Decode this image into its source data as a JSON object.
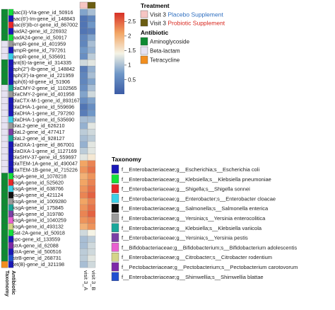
{
  "chart_data": {
    "type": "heatmap",
    "columns": [
      "visit 3_A",
      "visit 3_B"
    ],
    "annotation_tracks": [
      "Taxonomy",
      "Antibiotic"
    ],
    "column_annotation_title": "Treatment",
    "rows": [
      {
        "label": "aac(3)-VIa-gene_id_50916",
        "values": [
          0.8,
          1.0
        ],
        "taxonomy": 1,
        "antibiotic": 0
      },
      {
        "label": "aac(6')-Im-gene_id_148843",
        "values": [
          0.3,
          0.5
        ],
        "taxonomy": 0,
        "antibiotic": 0
      },
      {
        "label": "aac(6')Ib-cr-gene_id_867002",
        "values": [
          0.3,
          0.7
        ],
        "taxonomy": 2,
        "antibiotic": 0
      },
      {
        "label": "aadA2-gene_id_226932",
        "values": [
          0.3,
          0.4
        ],
        "taxonomy": 0,
        "antibiotic": 0
      },
      {
        "label": "aadA24-gene_id_50917",
        "values": [
          0.5,
          0.8
        ],
        "taxonomy": 1,
        "antibiotic": 0
      },
      {
        "label": "ampR-gene_id_401959",
        "values": [
          0.5,
          1.0
        ],
        "taxonomy": 5,
        "antibiotic": 1
      },
      {
        "label": "ampR-gene_id_797261",
        "values": [
          0.7,
          0.9
        ],
        "taxonomy": 0,
        "antibiotic": 1
      },
      {
        "label": "ampR-gene_id_535691",
        "values": [
          0.6,
          1.1
        ],
        "taxonomy": 3,
        "antibiotic": 1
      },
      {
        "label": "ant(6)-Ia-gene_id_314335",
        "values": [
          1.2,
          1.3
        ],
        "taxonomy": 0,
        "antibiotic": 0
      },
      {
        "label": "aph(2'')-Ib-gene_id_148842",
        "values": [
          0.4,
          0.9
        ],
        "taxonomy": 0,
        "antibiotic": 0
      },
      {
        "label": "aph(3')-Ia-gene_id_221959",
        "values": [
          0.5,
          1.0
        ],
        "taxonomy": 0,
        "antibiotic": 0
      },
      {
        "label": "aph(6)-Id-gene_id_51906",
        "values": [
          0.5,
          0.8
        ],
        "taxonomy": 0,
        "antibiotic": 0
      },
      {
        "label": "blaCMY-2-gene_id_1102565",
        "values": [
          0.6,
          1.0
        ],
        "taxonomy": 6,
        "antibiotic": 1
      },
      {
        "label": "blaCMY-2-gene_id_401958",
        "values": [
          0.8,
          1.2
        ],
        "taxonomy": 5,
        "antibiotic": 1
      },
      {
        "label": "blaCTX-M-1-gene_id_893167",
        "values": [
          0.6,
          0.8
        ],
        "taxonomy": 0,
        "antibiotic": 1
      },
      {
        "label": "blaDHA-1-gene_id_559696",
        "values": [
          0.3,
          0.6
        ],
        "taxonomy": 0,
        "antibiotic": 1
      },
      {
        "label": "blaDHA-1-gene_id_797260",
        "values": [
          0.4,
          0.7
        ],
        "taxonomy": 0,
        "antibiotic": 1
      },
      {
        "label": "blaDHA-1-gene_id_535690",
        "values": [
          1.0,
          1.0
        ],
        "taxonomy": 3,
        "antibiotic": 1
      },
      {
        "label": "blaL2-gene_id_626210",
        "values": [
          0.9,
          1.3
        ],
        "taxonomy": 5,
        "antibiotic": 1
      },
      {
        "label": "blaL2-gene_id_477417",
        "values": [
          1.1,
          1.2
        ],
        "taxonomy": 7,
        "antibiotic": 1
      },
      {
        "label": "blaL2-gene_id_928127",
        "values": [
          1.0,
          1.1
        ],
        "taxonomy": 6,
        "antibiotic": 1
      },
      {
        "label": "blaOXA-1-gene_id_867001",
        "values": [
          0.9,
          1.3
        ],
        "taxonomy": 0,
        "antibiotic": 1
      },
      {
        "label": "blaOXA-1-gene_id_1127169",
        "values": [
          1.1,
          1.3
        ],
        "taxonomy": 0,
        "antibiotic": 1
      },
      {
        "label": "blaSHV-37-gene_id_559697",
        "values": [
          1.3,
          1.5
        ],
        "taxonomy": 0,
        "antibiotic": 1
      },
      {
        "label": "blaTEM-1A-gene_id_490047",
        "values": [
          2.1,
          2.3
        ],
        "taxonomy": 0,
        "antibiotic": 1
      },
      {
        "label": "blaTEM-1B-gene_id_715226",
        "values": [
          2.2,
          2.4
        ],
        "taxonomy": 0,
        "antibiotic": 1
      },
      {
        "label": "ksgA-gene_id_1078218",
        "values": [
          2.0,
          2.2
        ],
        "taxonomy": 1,
        "antibiotic": 0
      },
      {
        "label": "ksgA-gene_id_525620",
        "values": [
          2.1,
          2.3
        ],
        "taxonomy": 2,
        "antibiotic": 0
      },
      {
        "label": "ksgA-gene_id_638766",
        "values": [
          2.2,
          2.4
        ],
        "taxonomy": 3,
        "antibiotic": 0
      },
      {
        "label": "ksgA-gene_id_421124",
        "values": [
          2.3,
          2.5
        ],
        "taxonomy": 4,
        "antibiotic": 0
      },
      {
        "label": "ksgA-gene_id_1009280",
        "values": [
          2.1,
          2.3
        ],
        "taxonomy": 5,
        "antibiotic": 0
      },
      {
        "label": "ksgA-gene_id_175845",
        "values": [
          2.2,
          2.4
        ],
        "taxonomy": 6,
        "antibiotic": 0
      },
      {
        "label": "ksgA-gene_id_319780",
        "values": [
          2.3,
          2.5
        ],
        "taxonomy": 7,
        "antibiotic": 0
      },
      {
        "label": "ksgA-gene_id_1040259",
        "values": [
          2.2,
          2.3
        ],
        "taxonomy": 8,
        "antibiotic": 0
      },
      {
        "label": "ksgA-gene_id_493132",
        "values": [
          2.0,
          2.2
        ],
        "taxonomy": 9,
        "antibiotic": 0
      },
      {
        "label": "Sat-2A-gene_id_50918",
        "values": [
          1.2,
          1.4
        ],
        "taxonomy": 1,
        "antibiotic": 0
      },
      {
        "label": "spc-gene_id_133559",
        "values": [
          1.0,
          1.1
        ],
        "taxonomy": 0,
        "antibiotic": 0
      },
      {
        "label": "strA-gene_id_62088",
        "values": [
          1.0,
          1.2
        ],
        "taxonomy": 10,
        "antibiotic": 0
      },
      {
        "label": "strA-gene_id_500516",
        "values": [
          1.1,
          1.2
        ],
        "taxonomy": 0,
        "antibiotic": 0
      },
      {
        "label": "strB-gene_id_268731",
        "values": [
          1.1,
          1.3
        ],
        "taxonomy": 11,
        "antibiotic": 0
      },
      {
        "label": "tet(B)-gene_id_321198",
        "values": [
          1.0,
          1.2
        ],
        "taxonomy": 0,
        "antibiotic": 2
      }
    ],
    "color_scale": {
      "min": 0,
      "max": 2.8,
      "ticks": [
        0.5,
        1,
        1.5,
        2,
        2.5
      ],
      "tick_labels": [
        "0.5",
        "1",
        "1.5",
        "2",
        "2.5"
      ],
      "stops": [
        "#3b5ba5",
        "#6f97c7",
        "#f5f3e5",
        "#f2a564",
        "#d73027"
      ]
    },
    "treatment_legend": {
      "title": "Treatment",
      "items": [
        {
          "prefix": "Visit 3",
          "label": "Placebo Supplement",
          "swatch": "#f6c5c3",
          "text_color": "#2f6fc0"
        },
        {
          "prefix": "Visit 3",
          "label": "Probiotic Supplement",
          "swatch": "#6b5d12",
          "text_color": "#d8281f"
        }
      ]
    },
    "antibiotic_legend": {
      "title": "Antibiotic",
      "items": [
        {
          "label": "Aminoglycoside",
          "color": "#0f8a32"
        },
        {
          "label": "Beta-lactam",
          "color": "#e6e2f2"
        },
        {
          "label": "Tetracycline",
          "color": "#f28e1e"
        }
      ]
    },
    "taxonomy_legend": {
      "title": "Taxonomy",
      "items": [
        {
          "family": "f__Enterobacteriaceae;g__Escherichia;s__",
          "species": "Escherichia coli",
          "color": "#1a18b8"
        },
        {
          "family": "f__Enterobacteriaceae;g__Klebsiella;s__",
          "species": "Klebsiella pneumoniae",
          "color": "#14e03a"
        },
        {
          "family": "f__Enterobacteriaceae;g__Shigella;s__",
          "species": "Shigella sonnei",
          "color": "#e8282a"
        },
        {
          "family": "f__Enterobacteriaceae;g__Enterobacter;s__",
          "species": "Enterobacter cloacae",
          "color": "#3ad0e8"
        },
        {
          "family": "f__Enterobacteriaceae;g__Salmonella;s__",
          "species": "Salmonella enterica",
          "color": "#101010"
        },
        {
          "family": "f__Enterobacteriaceae;g__Yersinia;s__",
          "species": "Yersinia enterocolitica",
          "color": "#9a9a9a"
        },
        {
          "family": "f__Enterobacteriaceae;g__Klebsiella;s__",
          "species": "Klebsiella variicola",
          "color": "#1aa79a"
        },
        {
          "family": "f__Enterobacteriaceae;g__Yersinia;s__",
          "species": "Yersinia pestis",
          "color": "#7a3fa5"
        },
        {
          "family": "f__Bifidobacteriaceae;g__Bifidobacterium;s__",
          "species": "Bifidobacterium adolescentis",
          "color": "#e85fd0"
        },
        {
          "family": "f__Enterobacteriaceae;g__Citrobacter;s__",
          "species": "Citrobacter rodentium",
          "color": "#d4d488"
        },
        {
          "family": "f__Pectobacteriaceae;g__Pectobacterium;s__",
          "species": "Pectobacterium carotovorum",
          "color": "#7d28a8"
        },
        {
          "family": "f__Enterobacteriaceae;g__Shimwellia;s__",
          "species": "Shimwellia blattae",
          "color": "#1f4fd0"
        }
      ]
    }
  }
}
